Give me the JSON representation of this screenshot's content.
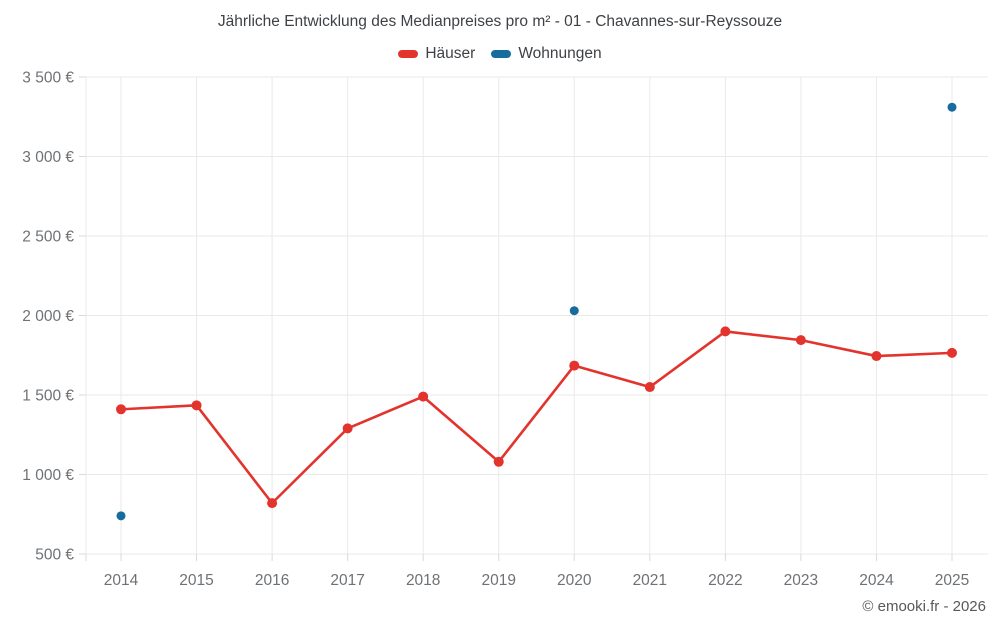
{
  "title": "Jährliche Entwicklung des Medianpreises pro m² - 01 - Chavannes-sur-Reyssouze",
  "footer": "© emooki.fr - 2026",
  "legend": [
    {
      "label": "Häuser",
      "color": "#e2342d"
    },
    {
      "label": "Wohnungen",
      "color": "#176c9e"
    }
  ],
  "chart_data": {
    "type": "line",
    "title": "Jährliche Entwicklung des Medianpreises pro m² - 01 - Chavannes-sur-Reyssouze",
    "categories": [
      "2014",
      "2015",
      "2016",
      "2017",
      "2018",
      "2019",
      "2020",
      "2021",
      "2022",
      "2023",
      "2024",
      "2025"
    ],
    "series": [
      {
        "name": "Häuser",
        "slug": "haeuser",
        "color": "#e2342d",
        "values": [
          1410,
          1435,
          820,
          1290,
          1490,
          1080,
          1685,
          1550,
          1900,
          1845,
          1745,
          1765
        ]
      },
      {
        "name": "Wohnungen",
        "slug": "wohnungen",
        "color": "#176c9e",
        "values": [
          740,
          null,
          null,
          null,
          null,
          null,
          2030,
          null,
          null,
          null,
          null,
          3310
        ]
      }
    ],
    "xlabel": "",
    "ylabel": "",
    "ylim": [
      500,
      3500
    ],
    "y_ticks": [
      500,
      1000,
      1500,
      2000,
      2500,
      3000,
      3500
    ],
    "y_tick_labels": [
      "500 €",
      "1 000 €",
      "1 500 €",
      "2 000 €",
      "2 500 €",
      "3 000 €",
      "3 500 €"
    ],
    "grid": true,
    "legend_position": "top",
    "currency": "€"
  }
}
